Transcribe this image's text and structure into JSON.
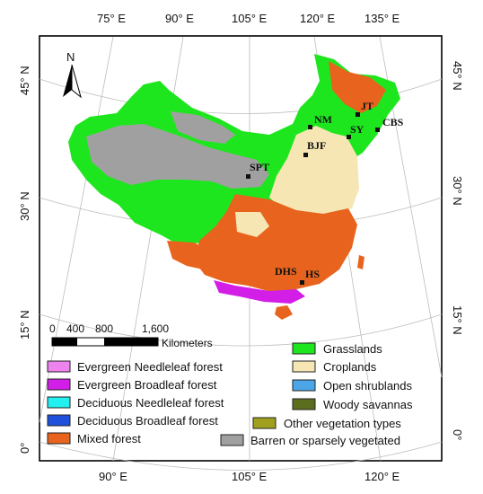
{
  "axes": {
    "top": [
      "75° E",
      "90° E",
      "105° E",
      "120° E",
      "135° E"
    ],
    "bottom": [
      "90° E",
      "105° E",
      "120° E"
    ],
    "left": [
      "45° N",
      "30° N",
      "15° N",
      "0°"
    ],
    "right": [
      "45° N",
      "30° N",
      "15° N",
      "0°"
    ]
  },
  "north_arrow": "N",
  "sites": [
    "JT",
    "NM",
    "SY",
    "CBS",
    "BJF",
    "SPT",
    "DHS",
    "HS"
  ],
  "scalebar": {
    "ticks": [
      "0",
      "400",
      "800",
      "1,600"
    ],
    "unit": "Kilometers"
  },
  "legend": [
    {
      "label": "Evergreen Needleleaf forest",
      "color": "#ee82ee"
    },
    {
      "label": "Evergreen Broadleaf forest",
      "color": "#d21ee6"
    },
    {
      "label": "Deciduous Needleleaf forest",
      "color": "#23f0f0"
    },
    {
      "label": "Deciduous Broadleaf forest",
      "color": "#1e50dc"
    },
    {
      "label": "Mixed forest",
      "color": "#e8641e"
    },
    {
      "label": "Grasslands",
      "color": "#1ee61e"
    },
    {
      "label": "Croplands",
      "color": "#f5e6b4"
    },
    {
      "label": "Open shrublands",
      "color": "#4ba5e6"
    },
    {
      "label": "Woody savannas",
      "color": "#5a6e1e"
    },
    {
      "label": "Other vegetation types",
      "color": "#a0a01e"
    },
    {
      "label": "Barren or sparsely vegetated",
      "color": "#a0a0a0"
    }
  ]
}
